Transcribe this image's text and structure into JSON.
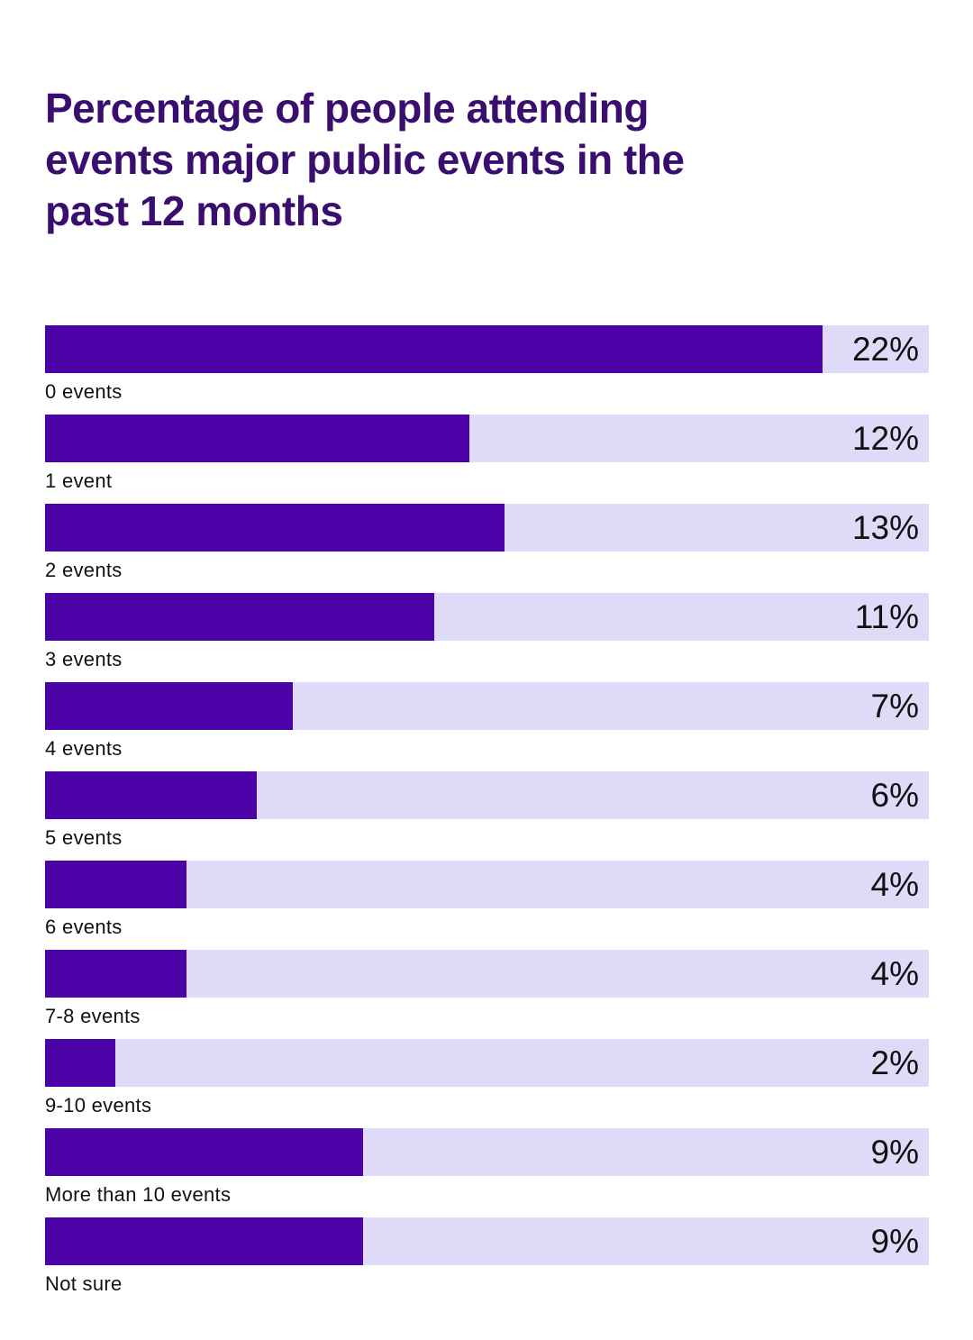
{
  "title_lines": [
    "Percentage of people attending",
    "events major public events in the",
    "past 12 months"
  ],
  "colors": {
    "background": "#ffffff",
    "title": "#3a0e6e",
    "bar_fill": "#4b02a7",
    "bar_track": "#dedaf8",
    "value_text": "#111111",
    "label_text": "#111111"
  },
  "chart_data": {
    "type": "bar",
    "orientation": "horizontal",
    "title": "Percentage of people attending events major public events in the past 12 months",
    "categories": [
      "0 events",
      "1 event",
      "2 events",
      "3 events",
      "4 events",
      "5 events",
      "6 events",
      "7-8 events",
      "9-10 events",
      "More than 10 events",
      "Not sure"
    ],
    "values": [
      22,
      12,
      13,
      11,
      7,
      6,
      4,
      4,
      2,
      9,
      9
    ],
    "value_labels": [
      "22%",
      "12%",
      "13%",
      "11%",
      "7%",
      "6%",
      "4%",
      "4%",
      "2%",
      "9%",
      "9%"
    ],
    "xlabel": "",
    "ylabel": "",
    "xlim": [
      0,
      25
    ],
    "scale_max": 25,
    "grid": false,
    "legend": false,
    "value_label_position": "inside-track-right",
    "category_label_position": "below-bar"
  }
}
